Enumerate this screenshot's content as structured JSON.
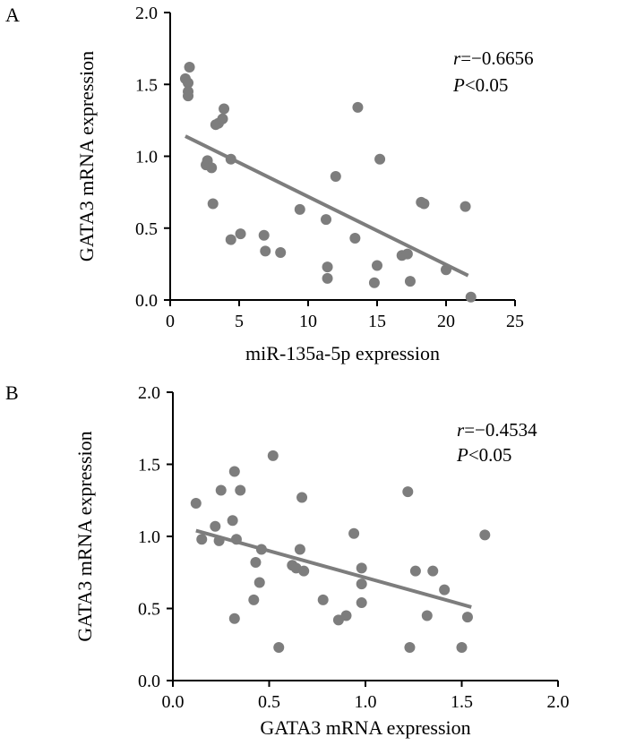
{
  "chart_data": [
    {
      "panel_label": "A",
      "type": "scatter",
      "xlabel": "miR-135a-5p expression",
      "ylabel": "GATA3 mRNA expression",
      "xlim": [
        0,
        25
      ],
      "ylim": [
        0,
        2
      ],
      "x_ticks": [
        "0",
        "5",
        "10",
        "15",
        "20",
        "25"
      ],
      "y_ticks": [
        "0.0",
        "0.5",
        "1.0",
        "1.5",
        "2.0"
      ],
      "r_label": "r",
      "r_value": "=−0.6656",
      "p_label": "P",
      "p_value": "<0.05",
      "points": [
        [
          1.1,
          1.54
        ],
        [
          1.3,
          1.51
        ],
        [
          1.4,
          1.62
        ],
        [
          1.3,
          1.45
        ],
        [
          1.3,
          1.42
        ],
        [
          3.3,
          1.22
        ],
        [
          3.5,
          1.23
        ],
        [
          3.8,
          1.26
        ],
        [
          3.9,
          1.33
        ],
        [
          2.6,
          0.94
        ],
        [
          2.7,
          0.97
        ],
        [
          3.0,
          0.92
        ],
        [
          4.4,
          0.98
        ],
        [
          3.1,
          0.67
        ],
        [
          4.4,
          0.42
        ],
        [
          5.1,
          0.46
        ],
        [
          6.8,
          0.45
        ],
        [
          6.9,
          0.34
        ],
        [
          8.0,
          0.33
        ],
        [
          9.4,
          0.63
        ],
        [
          11.3,
          0.56
        ],
        [
          11.4,
          0.23
        ],
        [
          11.4,
          0.15
        ],
        [
          12.0,
          0.86
        ],
        [
          13.4,
          0.43
        ],
        [
          13.6,
          1.34
        ],
        [
          14.8,
          0.12
        ],
        [
          15.0,
          0.24
        ],
        [
          15.2,
          0.98
        ],
        [
          16.8,
          0.31
        ],
        [
          17.2,
          0.32
        ],
        [
          17.4,
          0.13
        ],
        [
          18.2,
          0.68
        ],
        [
          18.4,
          0.67
        ],
        [
          20.0,
          0.21
        ],
        [
          21.4,
          0.65
        ],
        [
          21.8,
          0.02
        ]
      ],
      "fit_line": [
        [
          1.1,
          1.14
        ],
        [
          21.6,
          0.17
        ]
      ]
    },
    {
      "panel_label": "B",
      "type": "scatter",
      "xlabel": "GATA3 mRNA expression",
      "ylabel": "GATA3 mRNA expression",
      "xlim": [
        0,
        2
      ],
      "ylim": [
        0,
        2
      ],
      "x_ticks": [
        "0.0",
        "0.5",
        "1.0",
        "1.5",
        "2.0"
      ],
      "y_ticks": [
        "0.0",
        "0.5",
        "1.0",
        "1.5",
        "2.0"
      ],
      "r_label": "r",
      "r_value": "=−0.4534",
      "p_label": "P",
      "p_value": "<0.05",
      "points": [
        [
          0.12,
          1.23
        ],
        [
          0.15,
          0.98
        ],
        [
          0.22,
          1.07
        ],
        [
          0.24,
          0.97
        ],
        [
          0.25,
          1.32
        ],
        [
          0.31,
          1.11
        ],
        [
          0.32,
          1.45
        ],
        [
          0.33,
          0.98
        ],
        [
          0.35,
          1.32
        ],
        [
          0.32,
          0.43
        ],
        [
          0.42,
          0.56
        ],
        [
          0.43,
          0.82
        ],
        [
          0.45,
          0.68
        ],
        [
          0.46,
          0.91
        ],
        [
          0.52,
          1.56
        ],
        [
          0.55,
          0.23
        ],
        [
          0.62,
          0.8
        ],
        [
          0.64,
          0.78
        ],
        [
          0.66,
          0.91
        ],
        [
          0.67,
          1.27
        ],
        [
          0.68,
          0.76
        ],
        [
          0.78,
          0.56
        ],
        [
          0.86,
          0.42
        ],
        [
          0.9,
          0.45
        ],
        [
          0.94,
          1.02
        ],
        [
          0.98,
          0.78
        ],
        [
          0.98,
          0.67
        ],
        [
          0.98,
          0.54
        ],
        [
          1.22,
          1.31
        ],
        [
          1.23,
          0.23
        ],
        [
          1.26,
          0.76
        ],
        [
          1.32,
          0.45
        ],
        [
          1.35,
          0.76
        ],
        [
          1.41,
          0.63
        ],
        [
          1.5,
          0.23
        ],
        [
          1.53,
          0.44
        ],
        [
          1.62,
          1.01
        ]
      ],
      "fit_line": [
        [
          0.12,
          1.04
        ],
        [
          1.55,
          0.51
        ]
      ]
    }
  ]
}
